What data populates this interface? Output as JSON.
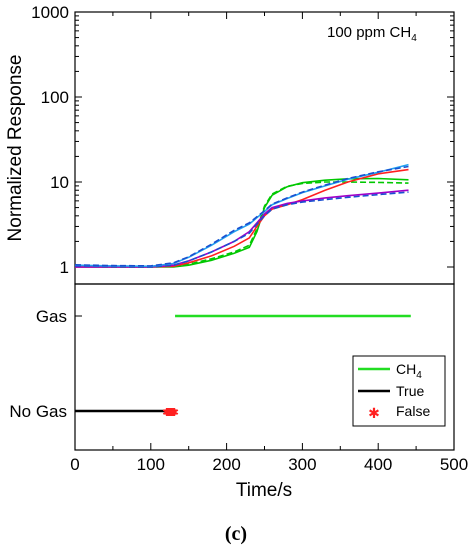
{
  "chart_data": [
    {
      "panel": "top",
      "type": "line",
      "ylabel": "Normalized Response",
      "y_scale": "log",
      "ylim": [
        1,
        1000
      ],
      "xlim": [
        0,
        500
      ],
      "y_ticks": [
        "1",
        "10",
        "100",
        "1000"
      ],
      "annotation": {
        "main": "100 ppm CH",
        "sub": "4"
      },
      "series": [
        {
          "color": "#00c800",
          "dashed": false,
          "x": [
            0,
            50,
            100,
            130,
            150,
            180,
            210,
            230,
            240,
            250,
            260,
            280,
            300,
            330,
            360,
            400,
            440
          ],
          "y": [
            1.0,
            1.0,
            1.0,
            1.0,
            1.05,
            1.2,
            1.45,
            1.7,
            2.6,
            5.0,
            7.0,
            8.8,
            9.8,
            10.5,
            10.9,
            11.0,
            10.6
          ]
        },
        {
          "color": "#00c800",
          "dashed": true,
          "x": [
            0,
            50,
            100,
            130,
            150,
            180,
            210,
            230,
            240,
            250,
            260,
            280,
            300,
            330,
            360,
            400,
            440
          ],
          "y": [
            1.02,
            1.0,
            1.0,
            1.02,
            1.08,
            1.25,
            1.5,
            1.8,
            2.8,
            5.2,
            7.2,
            8.9,
            9.6,
            10.0,
            10.0,
            9.9,
            9.7
          ]
        },
        {
          "color": "#ff2020",
          "dashed": false,
          "x": [
            0,
            50,
            100,
            130,
            150,
            180,
            210,
            230,
            240,
            250,
            260,
            280,
            300,
            330,
            360,
            400,
            440
          ],
          "y": [
            1.0,
            1.0,
            1.0,
            1.02,
            1.12,
            1.35,
            1.75,
            2.2,
            3.0,
            4.0,
            4.8,
            5.4,
            6.2,
            8.0,
            10.0,
            12.5,
            14.0
          ]
        },
        {
          "color": "#a000c8",
          "dashed": false,
          "x": [
            0,
            50,
            100,
            130,
            150,
            180,
            210,
            230,
            240,
            250,
            260,
            280,
            300,
            330,
            360,
            400,
            440
          ],
          "y": [
            1.0,
            1.0,
            1.0,
            1.05,
            1.18,
            1.5,
            2.0,
            2.6,
            3.3,
            4.2,
            5.0,
            5.6,
            6.0,
            6.5,
            6.9,
            7.4,
            8.0
          ]
        },
        {
          "color": "#1a4fd0",
          "dashed": true,
          "x": [
            0,
            50,
            100,
            130,
            150,
            180,
            210,
            230,
            240,
            250,
            260,
            280,
            300,
            330,
            360,
            400,
            440
          ],
          "y": [
            1.03,
            1.01,
            1.0,
            1.05,
            1.18,
            1.5,
            2.0,
            2.5,
            3.2,
            4.0,
            4.8,
            5.4,
            5.8,
            6.2,
            6.6,
            7.1,
            7.6
          ]
        },
        {
          "color": "#20a0f0",
          "dashed": false,
          "x": [
            0,
            50,
            100,
            130,
            150,
            180,
            210,
            230,
            240,
            250,
            260,
            280,
            300,
            330,
            360,
            400,
            440
          ],
          "y": [
            1.05,
            1.03,
            1.02,
            1.1,
            1.3,
            1.8,
            2.6,
            3.2,
            3.8,
            4.5,
            5.4,
            6.4,
            7.5,
            9.0,
            10.8,
            13.0,
            16.0
          ]
        },
        {
          "color": "#1a4fd0",
          "dashed": true,
          "x": [
            0,
            50,
            100,
            130,
            150,
            180,
            210,
            230,
            240,
            250,
            260,
            280,
            300,
            330,
            360,
            400,
            440
          ],
          "y": [
            1.06,
            1.04,
            1.03,
            1.12,
            1.32,
            1.85,
            2.7,
            3.3,
            3.9,
            4.6,
            5.5,
            6.5,
            7.6,
            9.2,
            11.0,
            13.2,
            15.2
          ]
        }
      ]
    },
    {
      "panel": "bottom",
      "type": "line",
      "xlabel": "Time/s",
      "xlim": [
        0,
        500
      ],
      "x_ticks": [
        "0",
        "100",
        "200",
        "300",
        "400",
        "500"
      ],
      "categories": [
        "No Gas",
        "Gas"
      ],
      "series": [
        {
          "name": "CH",
          "name_sub": "4",
          "color": "#22dd22",
          "category": "Gas",
          "x": [
            132,
            443
          ]
        },
        {
          "name": "True",
          "color": "#000000",
          "category": "No Gas",
          "x": [
            0,
            122
          ]
        },
        {
          "name": "False",
          "color": "#ff2020",
          "category": "No Gas",
          "marker": "*",
          "x": [
            121,
            122,
            123,
            124,
            125,
            126,
            127,
            128,
            129,
            130,
            131
          ]
        }
      ]
    }
  ],
  "caption": "(c)"
}
